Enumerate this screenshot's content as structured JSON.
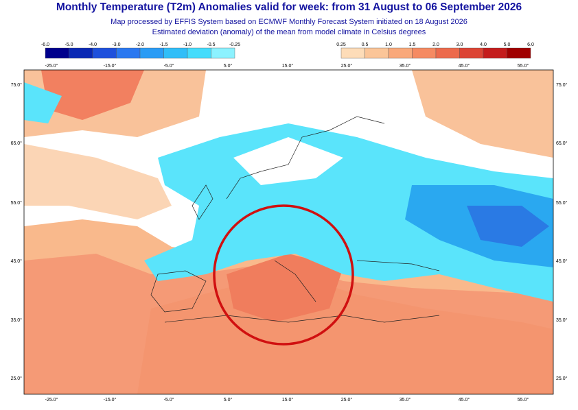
{
  "header": {
    "title": "Monthly Temperature (T2m) Anomalies valid for week: from 31 August to 06 September 2026",
    "subtitle": "Map processed by EFFIS System based on ECMWF Monthly Forecast System initiated on 18 August 2026",
    "description": "Estimated deviation (anomaly) of the mean from model climate in Celsius degrees"
  },
  "legend": {
    "cold": [
      "-6.0",
      "-5.0",
      "-4.0",
      "-3.0",
      "-2.0",
      "-1.5",
      "-1.0",
      "-0.5",
      "-0.25"
    ],
    "warm": [
      "0.25",
      "0.5",
      "1.0",
      "1.5",
      "2.0",
      "3.0",
      "4.0",
      "5.0",
      "6.0"
    ]
  },
  "map": {
    "longitudes": [
      "-25.0°",
      "-15.0°",
      "-5.0°",
      "5.0°",
      "15.0°",
      "25.0°",
      "35.0°",
      "45.0°",
      "55.0°"
    ],
    "latitudes": [
      "75.0°",
      "65.0°",
      "55.0°",
      "45.0°",
      "35.0°",
      "25.0°"
    ]
  }
}
